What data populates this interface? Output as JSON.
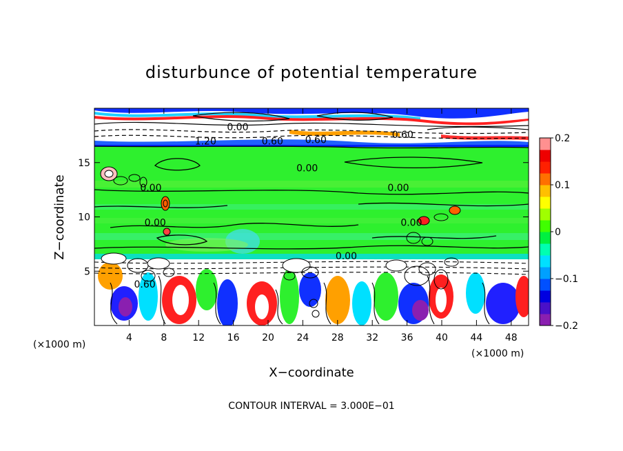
{
  "chart_data": {
    "type": "heatmap",
    "title": "disturbunce of potential temperature",
    "xlabel": "X−coordinate",
    "ylabel": "Z−coordinate",
    "x_unit_label": "(×1000 m)",
    "x_unit_label_right": "(×1000 m)",
    "xlim": [
      0,
      50
    ],
    "ylim": [
      0,
      20
    ],
    "x_ticks": [
      4,
      8,
      12,
      16,
      20,
      24,
      28,
      32,
      36,
      40,
      44,
      48
    ],
    "y_ticks": [
      5,
      10,
      15
    ],
    "colorbar": {
      "range": [
        -0.2,
        0.2
      ],
      "tick_values": [
        0.2,
        0.1,
        0,
        -0.1,
        -0.2
      ],
      "tick_labels": [
        "0.2",
        "0.1",
        "0",
        "−0.1",
        "−0.2"
      ],
      "colors": [
        "#8a1fb0",
        "#4a10c8",
        "#0000e0",
        "#0050ff",
        "#00a0ff",
        "#00e0ff",
        "#00ffb0",
        "#00f040",
        "#40ff00",
        "#a0ff00",
        "#ffff00",
        "#ffc000",
        "#ff7000",
        "#ff2000",
        "#ee0000",
        "#ff9090"
      ]
    },
    "contour_labels": [
      {
        "text": "0.00",
        "x": 16.5,
        "y": 18.3
      },
      {
        "text": "1.20",
        "x": 12.8,
        "y": 17.0
      },
      {
        "text": "0.60",
        "x": 20.5,
        "y": 17.0
      },
      {
        "text": "0.60",
        "x": 25.5,
        "y": 17.1
      },
      {
        "text": "0.60",
        "x": 35.5,
        "y": 17.6
      },
      {
        "text": "0.00",
        "x": 24.5,
        "y": 14.5
      },
      {
        "text": "0.00",
        "x": 6.5,
        "y": 12.7
      },
      {
        "text": "0.00",
        "x": 35.0,
        "y": 12.7
      },
      {
        "text": "0.00",
        "x": 7.0,
        "y": 9.5
      },
      {
        "text": "0.00",
        "x": 36.5,
        "y": 9.5
      },
      {
        "text": "0.00",
        "x": 29.0,
        "y": 6.4
      },
      {
        "text": "0.60",
        "x": 5.8,
        "y": 3.8
      }
    ],
    "footer": "CONTOUR INTERVAL = 3.000E−01"
  }
}
